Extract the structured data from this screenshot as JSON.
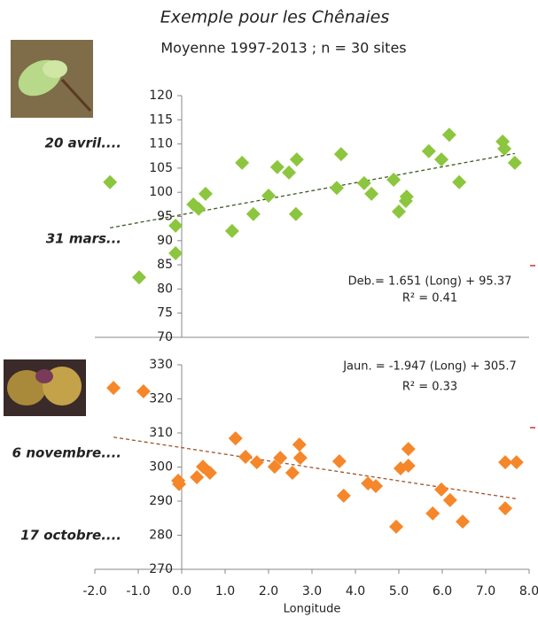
{
  "title": "Exemple pour les Chênaies",
  "subtitle": "Moyenne 1997-2013 ; n = 30 sites",
  "chart_data": [
    {
      "type": "scatter",
      "color": "#8cc63e",
      "annotations": [
        "20 avril....",
        "31 mars..."
      ],
      "xlim": [
        -2,
        8
      ],
      "ylim": [
        70,
        120
      ],
      "yticks": [
        70,
        75,
        80,
        85,
        90,
        95,
        100,
        105,
        110,
        115,
        120
      ],
      "trendline": {
        "slope": 1.651,
        "intercept": 95.37,
        "color": "#3d5a1e",
        "label": "Deb.= 1.651 (Long) + 95.37",
        "r2_label": "R² = 0.41"
      },
      "x": [
        -1.65,
        -0.98,
        -0.14,
        -0.14,
        0.27,
        0.39,
        0.55,
        1.16,
        1.39,
        1.65,
        2.0,
        2.2,
        2.47,
        2.65,
        2.63,
        3.57,
        3.67,
        4.2,
        4.37,
        4.88,
        5.0,
        5.16,
        5.18,
        5.69,
        5.98,
        6.16,
        6.39,
        7.39,
        7.43,
        7.67
      ],
      "values": [
        102.1,
        82.4,
        87.4,
        93.1,
        97.5,
        96.6,
        99.7,
        92.0,
        106.1,
        95.5,
        99.3,
        105.2,
        104.1,
        106.8,
        95.5,
        100.9,
        107.9,
        101.9,
        99.7,
        102.6,
        96.0,
        98.2,
        99.1,
        108.5,
        106.8,
        111.9,
        102.1,
        110.5,
        109.0,
        106.1
      ]
    },
    {
      "type": "scatter",
      "color": "#f5872a",
      "annotations": [
        "6 novembre....",
        "17 octobre...."
      ],
      "x_label": "Longitude",
      "xlim": [
        -2,
        8
      ],
      "xticks": [
        {
          "value": -2,
          "label": "-2.0"
        },
        {
          "value": -1,
          "label": "-1.0"
        },
        {
          "value": 0,
          "label": "0.0"
        },
        {
          "value": 1,
          "label": "1.0"
        },
        {
          "value": 2,
          "label": "2.0"
        },
        {
          "value": 3,
          "label": "3.0"
        },
        {
          "value": 4,
          "label": "4.0"
        },
        {
          "value": 5,
          "label": "5.0"
        },
        {
          "value": 6,
          "label": "6.0"
        },
        {
          "value": 7,
          "label": "7.0"
        },
        {
          "value": 8,
          "label": "8.0"
        }
      ],
      "ylim": [
        270,
        330
      ],
      "yticks": [
        270,
        280,
        290,
        300,
        310,
        320,
        330
      ],
      "trendline": {
        "slope": -1.947,
        "intercept": 305.7,
        "color": "#a0522d",
        "label": "Jaun. = -1.947 (Long) + 305.7",
        "r2_label": "R² = 0.33"
      },
      "x": [
        -1.57,
        -0.88,
        -0.08,
        -0.06,
        0.35,
        0.49,
        0.65,
        1.24,
        1.47,
        1.73,
        2.14,
        2.27,
        2.55,
        2.71,
        2.73,
        3.63,
        3.73,
        4.29,
        4.47,
        4.94,
        5.04,
        5.22,
        5.22,
        5.78,
        5.98,
        6.18,
        6.47,
        7.45,
        7.45,
        7.71
      ],
      "values": [
        323.2,
        322.2,
        296.0,
        295.0,
        297.0,
        300.1,
        298.3,
        308.4,
        303.0,
        301.4,
        300.1,
        302.7,
        298.3,
        306.6,
        302.7,
        301.7,
        291.6,
        295.2,
        294.4,
        282.5,
        299.6,
        305.3,
        300.4,
        286.4,
        293.4,
        290.3,
        284.0,
        287.9,
        301.4,
        301.4
      ]
    }
  ]
}
